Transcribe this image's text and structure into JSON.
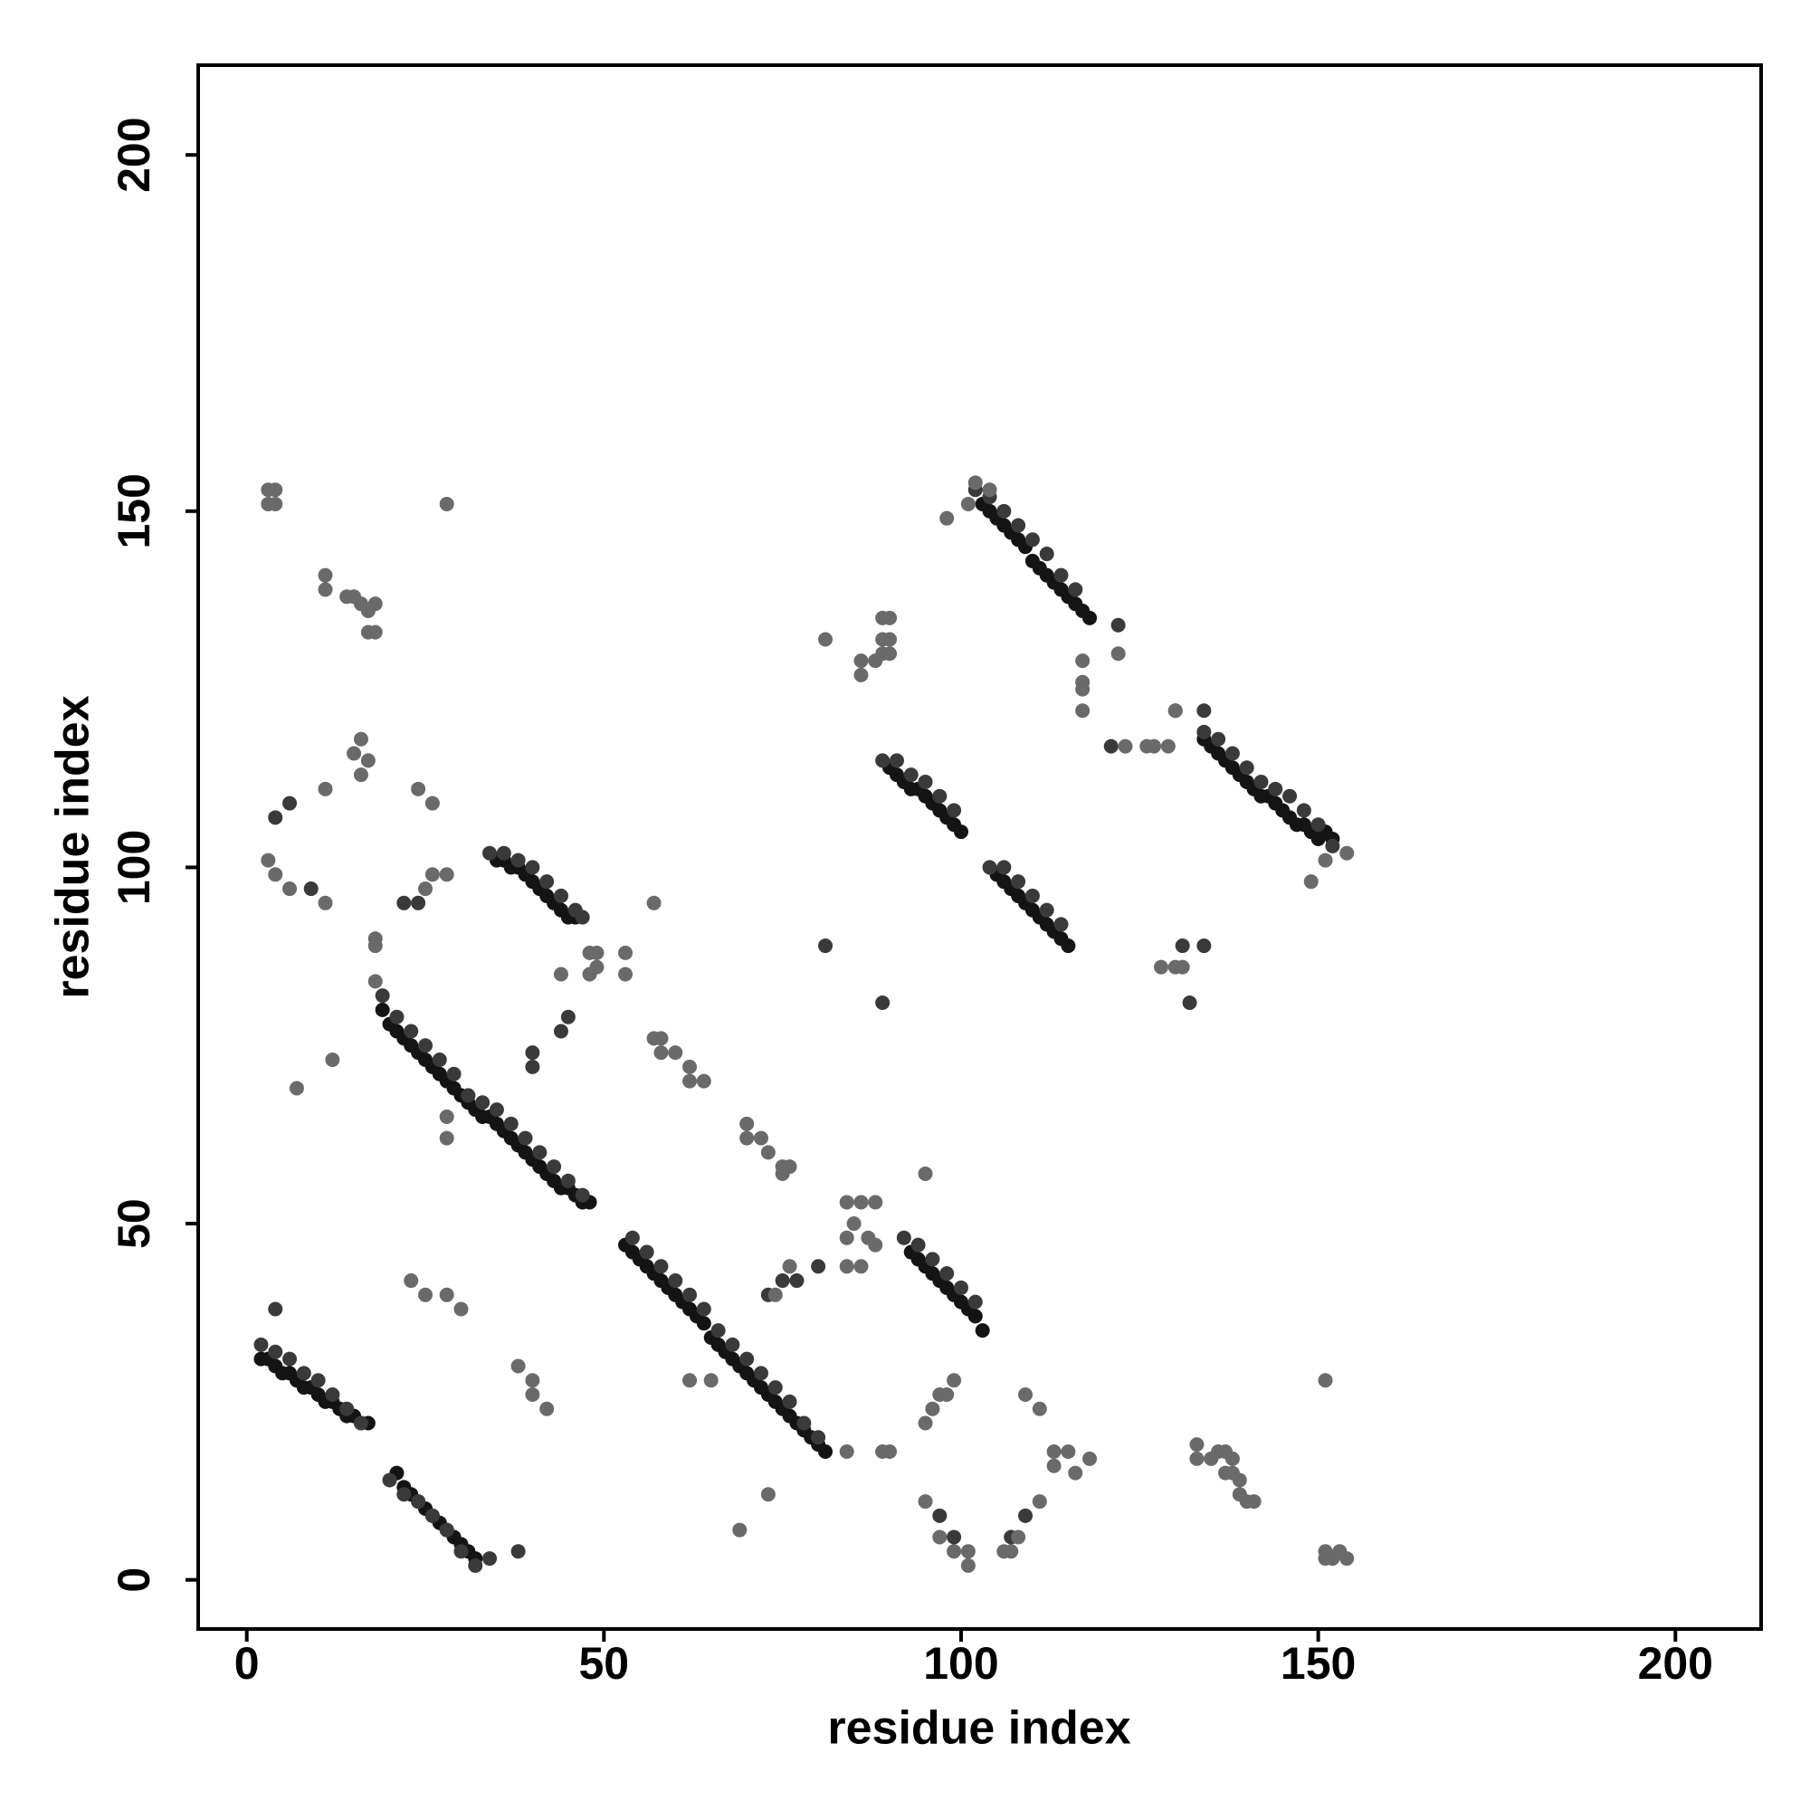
{
  "chart_data": {
    "type": "scatter",
    "x_label": "residue index",
    "y_label": "residue index",
    "xlim": [
      -6.8,
      212
    ],
    "ylim": [
      -6.9,
      212.6
    ],
    "xticks": [
      0,
      50,
      100,
      150,
      200
    ],
    "yticks": [
      0,
      50,
      100,
      150,
      200
    ],
    "series": [
      {
        "color": "#141414",
        "x": [
          2,
          3,
          4,
          5,
          6,
          7,
          8,
          9,
          10,
          11,
          12,
          13,
          14,
          15,
          16,
          17,
          21,
          22,
          23,
          24,
          25,
          26,
          27,
          28,
          29,
          30,
          31,
          32,
          19,
          20,
          21,
          22,
          23,
          24,
          25,
          26,
          27,
          28,
          29,
          30,
          31,
          32,
          33,
          34,
          35,
          36,
          37,
          38,
          39,
          40,
          41,
          42,
          43,
          44,
          45,
          46,
          47,
          48,
          35,
          36,
          37,
          38,
          39,
          40,
          41,
          42,
          43,
          44,
          45,
          46,
          53,
          54,
          55,
          56,
          57,
          58,
          59,
          60,
          61,
          62,
          63,
          64,
          65,
          66,
          67,
          68,
          69,
          70,
          71,
          72,
          73,
          74,
          75,
          76,
          77,
          78,
          79,
          80,
          81,
          93,
          94,
          95,
          96,
          97,
          98,
          99,
          100,
          101,
          102,
          103,
          90,
          91,
          92,
          93,
          94,
          95,
          96,
          97,
          98,
          99,
          100,
          105,
          106,
          107,
          108,
          109,
          110,
          111,
          112,
          113,
          114,
          115,
          103,
          104,
          105,
          106,
          107,
          108,
          109,
          110,
          111,
          112,
          113,
          114,
          115,
          116,
          117,
          118,
          134,
          135,
          136,
          137,
          138,
          139,
          140,
          141,
          142,
          143,
          144,
          145,
          146,
          147,
          148,
          149,
          150,
          151,
          152
        ],
        "y": [
          31,
          31,
          30,
          29,
          29,
          28,
          27,
          27,
          26,
          25,
          25,
          24,
          23,
          23,
          22,
          22,
          15,
          13,
          12,
          11,
          10,
          9,
          8,
          7,
          6,
          5,
          4,
          3,
          80,
          78,
          77,
          76,
          75,
          74,
          73,
          72,
          71,
          70,
          69,
          68,
          67,
          66,
          65,
          65,
          64,
          63,
          62,
          61,
          60,
          59,
          58,
          57,
          56,
          55,
          55,
          54,
          53,
          53,
          101,
          101,
          100,
          100,
          99,
          98,
          97,
          96,
          95,
          94,
          93,
          93,
          47,
          46,
          45,
          44,
          43,
          42,
          41,
          40,
          39,
          38,
          37,
          36,
          34,
          33,
          32,
          31,
          30,
          29,
          28,
          27,
          26,
          25,
          24,
          23,
          22,
          21,
          20,
          19,
          18,
          46,
          45,
          44,
          43,
          42,
          41,
          40,
          39,
          38,
          37,
          35,
          114,
          113,
          112,
          111,
          111,
          110,
          109,
          108,
          107,
          106,
          105,
          99,
          98,
          97,
          96,
          95,
          94,
          93,
          92,
          91,
          90,
          89,
          151,
          150,
          149,
          148,
          147,
          146,
          145,
          143,
          142,
          141,
          140,
          139,
          138,
          137,
          136,
          135,
          118,
          117,
          116,
          115,
          114,
          113,
          112,
          111,
          110,
          110,
          109,
          108,
          107,
          106,
          106,
          105,
          104,
          105,
          104
        ]
      },
      {
        "color": "#3a3a3a",
        "x": [
          2,
          4,
          6,
          8,
          10,
          12,
          14,
          16,
          20,
          22,
          24,
          26,
          28,
          30,
          32,
          34,
          19,
          21,
          23,
          25,
          27,
          29,
          31,
          33,
          35,
          37,
          39,
          41,
          43,
          45,
          47,
          34,
          36,
          38,
          40,
          42,
          44,
          46,
          47,
          54,
          56,
          58,
          60,
          62,
          64,
          66,
          68,
          70,
          72,
          74,
          76,
          78,
          80,
          92,
          94,
          96,
          98,
          100,
          102,
          89,
          91,
          93,
          95,
          97,
          99,
          104,
          106,
          108,
          110,
          112,
          114,
          102,
          104,
          106,
          108,
          110,
          112,
          114,
          116,
          134,
          136,
          138,
          140,
          142,
          144,
          146,
          148,
          150,
          152,
          4,
          38,
          40,
          40,
          44,
          45,
          73,
          75,
          77,
          80,
          97,
          99,
          107,
          109,
          89,
          81,
          132,
          122,
          121,
          130,
          134,
          131,
          134,
          22,
          24,
          9,
          6,
          4
        ],
        "y": [
          33,
          32,
          31,
          29,
          28,
          26,
          24,
          22,
          14,
          12,
          11,
          9,
          7,
          4,
          2,
          3,
          82,
          79,
          77,
          75,
          73,
          71,
          68,
          67,
          66,
          64,
          62,
          60,
          58,
          56,
          54,
          102,
          102,
          101,
          100,
          98,
          96,
          94,
          93,
          48,
          46,
          44,
          42,
          40,
          38,
          35,
          33,
          31,
          29,
          27,
          25,
          22,
          20,
          48,
          47,
          45,
          43,
          41,
          39,
          115,
          115,
          113,
          112,
          110,
          108,
          100,
          100,
          98,
          96,
          94,
          92,
          153,
          152,
          150,
          148,
          146,
          144,
          141,
          139,
          119,
          118,
          116,
          114,
          112,
          111,
          110,
          108,
          106,
          103,
          38,
          4,
          74,
          72,
          77,
          79,
          40,
          42,
          42,
          44,
          9,
          6,
          6,
          9,
          81,
          89,
          81,
          134,
          117,
          122,
          122,
          89,
          89,
          95,
          95,
          97,
          109,
          107
        ]
      },
      {
        "color": "#6a6a6a",
        "x": [
          3,
          4,
          3,
          4,
          28,
          11,
          11,
          14,
          15,
          16,
          17,
          17,
          18,
          18,
          16,
          15,
          17,
          16,
          11,
          3,
          4,
          6,
          11,
          25,
          26,
          28,
          24,
          26,
          18,
          18,
          18,
          12,
          7,
          28,
          28,
          44,
          48,
          49,
          49,
          53,
          53,
          57,
          48,
          57,
          58,
          58,
          60,
          62,
          64,
          62,
          70,
          70,
          72,
          73,
          75,
          76,
          75,
          23,
          25,
          28,
          30,
          38,
          40,
          40,
          42,
          76,
          74,
          65,
          62,
          69,
          73,
          84,
          89,
          90,
          84,
          86,
          88,
          85,
          84,
          87,
          88,
          86,
          84,
          95,
          96,
          95,
          97,
          98,
          99,
          95,
          97,
          99,
          101,
          101,
          106,
          107,
          108,
          111,
          109,
          111,
          113,
          113,
          115,
          116,
          118,
          133,
          133,
          135,
          136,
          137,
          138,
          137,
          138,
          139,
          139,
          140,
          141,
          151,
          151,
          152,
          153,
          154,
          151,
          81,
          86,
          86,
          88,
          89,
          90,
          89,
          90,
          89,
          90,
          98,
          101,
          102,
          104,
          117,
          117,
          117,
          117,
          122,
          123,
          126,
          127,
          129,
          130,
          128,
          130,
          131,
          149,
          151,
          154
        ],
        "y": [
          153,
          153,
          151,
          151,
          151,
          141,
          139,
          138,
          138,
          137,
          136,
          133,
          133,
          137,
          118,
          116,
          115,
          113,
          111,
          101,
          99,
          97,
          95,
          97,
          99,
          99,
          111,
          109,
          90,
          89,
          84,
          73,
          69,
          65,
          62,
          85,
          88,
          88,
          86,
          88,
          85,
          95,
          85,
          76,
          76,
          74,
          74,
          72,
          70,
          70,
          64,
          62,
          62,
          60,
          58,
          58,
          57,
          42,
          40,
          40,
          38,
          30,
          28,
          26,
          24,
          44,
          40,
          28,
          28,
          7,
          12,
          18,
          18,
          18,
          53,
          53,
          53,
          50,
          48,
          48,
          47,
          44,
          44,
          57,
          24,
          22,
          26,
          26,
          28,
          11,
          6,
          4,
          4,
          2,
          4,
          4,
          6,
          11,
          26,
          24,
          18,
          16,
          18,
          15,
          17,
          19,
          17,
          17,
          18,
          18,
          17,
          15,
          15,
          14,
          12,
          11,
          11,
          28,
          4,
          3,
          4,
          3,
          3,
          132,
          129,
          127,
          129,
          135,
          135,
          130,
          130,
          132,
          132,
          149,
          151,
          154,
          153,
          129,
          126,
          125,
          122,
          130,
          117,
          117,
          117,
          117,
          122,
          86,
          86,
          86,
          98,
          101,
          102
        ]
      }
    ]
  }
}
